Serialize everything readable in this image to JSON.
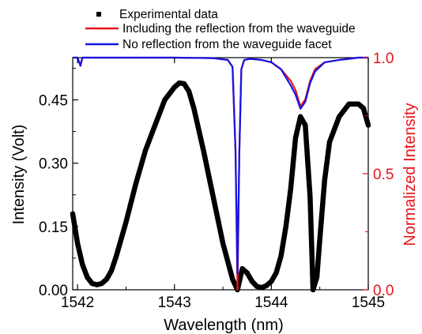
{
  "chart_data": {
    "type": "line",
    "title": "",
    "xlabel": "Wavelength (nm)",
    "ylabel_left": "Intensity (Volt)",
    "ylabel_right": "Normalized Intensity",
    "xlim": [
      1541.95,
      1545.0
    ],
    "ylim_left": [
      0.0,
      0.55
    ],
    "ylim_right": [
      0.0,
      1.0
    ],
    "x_ticks": [
      "1542",
      "1543",
      "1544",
      "1545"
    ],
    "y_left_ticks": [
      "0.00",
      "0.15",
      "0.30",
      "0.45"
    ],
    "y_right_ticks": [
      "0.0",
      "0.5",
      "1.0"
    ],
    "grid": false,
    "legend_position": "top",
    "colors": {
      "experimental": "#000000",
      "with_reflection": "#e8141b",
      "no_reflection": "#1414e6",
      "right_axis": "#e8141b"
    },
    "series": [
      {
        "name": "Experimental data",
        "axis": "left",
        "style": "markers",
        "x": [
          1541.95,
          1542.0,
          1542.05,
          1542.1,
          1542.15,
          1542.2,
          1542.25,
          1542.3,
          1542.35,
          1542.4,
          1542.5,
          1542.6,
          1542.7,
          1542.8,
          1542.9,
          1543.0,
          1543.05,
          1543.1,
          1543.15,
          1543.2,
          1543.3,
          1543.4,
          1543.5,
          1543.6,
          1543.65,
          1543.7,
          1543.75,
          1543.8,
          1543.85,
          1543.9,
          1543.95,
          1544.0,
          1544.05,
          1544.1,
          1544.15,
          1544.2,
          1544.25,
          1544.3,
          1544.35,
          1544.4,
          1544.43,
          1544.47,
          1544.5,
          1544.55,
          1544.6,
          1544.7,
          1544.8,
          1544.9,
          1544.95,
          1545.0
        ],
        "values": [
          0.18,
          0.11,
          0.06,
          0.03,
          0.015,
          0.012,
          0.015,
          0.025,
          0.045,
          0.08,
          0.16,
          0.25,
          0.33,
          0.39,
          0.45,
          0.48,
          0.49,
          0.488,
          0.47,
          0.43,
          0.33,
          0.22,
          0.11,
          0.025,
          0.0,
          0.05,
          0.04,
          0.02,
          0.008,
          0.005,
          0.01,
          0.02,
          0.04,
          0.08,
          0.15,
          0.24,
          0.36,
          0.41,
          0.39,
          0.22,
          0.0,
          0.03,
          0.12,
          0.26,
          0.35,
          0.41,
          0.44,
          0.44,
          0.43,
          0.39
        ]
      },
      {
        "name": "Including the reflection from the waveguide",
        "axis": "right",
        "style": "line",
        "x": [
          1541.95,
          1542.0,
          1542.03,
          1542.05,
          1542.1,
          1542.3,
          1543.0,
          1543.4,
          1543.55,
          1543.6,
          1543.63,
          1543.65,
          1543.67,
          1543.69,
          1543.72,
          1543.78,
          1543.9,
          1544.0,
          1544.1,
          1544.2,
          1544.25,
          1544.3,
          1544.35,
          1544.4,
          1544.45,
          1544.55,
          1544.7,
          1544.9,
          1545.0
        ],
        "values": [
          1.0,
          1.0,
          0.965,
          1.0,
          1.0,
          1.0,
          1.0,
          0.998,
          0.99,
          0.96,
          0.6,
          0.0,
          0.6,
          0.95,
          0.99,
          0.995,
          0.99,
          0.98,
          0.95,
          0.9,
          0.86,
          0.79,
          0.82,
          0.9,
          0.95,
          0.98,
          0.99,
          1.0,
          1.0
        ]
      },
      {
        "name": "No reflection from the waveguide facet",
        "axis": "right",
        "style": "line",
        "x": [
          1541.95,
          1542.0,
          1542.03,
          1542.05,
          1542.1,
          1542.3,
          1543.0,
          1543.4,
          1543.55,
          1543.6,
          1543.63,
          1543.65,
          1543.67,
          1543.69,
          1543.72,
          1543.78,
          1543.9,
          1544.0,
          1544.1,
          1544.2,
          1544.25,
          1544.3,
          1544.35,
          1544.4,
          1544.45,
          1544.55,
          1544.7,
          1544.9,
          1545.0
        ],
        "values": [
          1.0,
          1.0,
          0.965,
          1.0,
          1.0,
          1.0,
          1.0,
          0.998,
          0.99,
          0.96,
          0.6,
          0.07,
          0.6,
          0.95,
          0.99,
          0.995,
          0.99,
          0.98,
          0.95,
          0.88,
          0.84,
          0.78,
          0.81,
          0.89,
          0.94,
          0.98,
          0.99,
          1.0,
          1.0
        ]
      }
    ]
  }
}
